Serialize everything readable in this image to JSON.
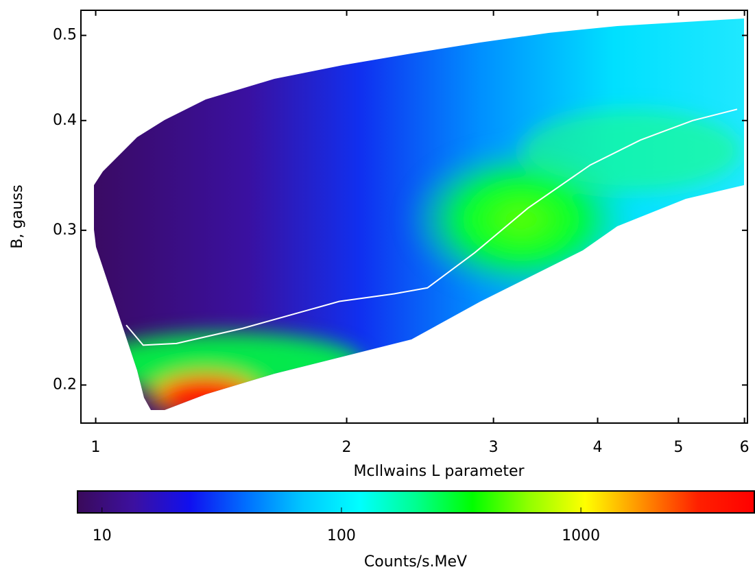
{
  "chart_data": {
    "type": "heatmap",
    "xlabel": "McIlwains L parameter",
    "ylabel": "B, gauss",
    "xscale": "log",
    "yscale": "log",
    "xlim": [
      0.96,
      6.05
    ],
    "xticks": [
      1,
      2,
      3,
      4,
      5,
      6
    ],
    "ylim": [
      0.181,
      0.534
    ],
    "yticks": [
      0.2,
      0.3,
      0.4,
      0.5
    ],
    "series": [
      {
        "type": "line",
        "color": "#ffffff",
        "x": [
          1.088,
          1.14,
          1.25,
          1.5,
          1.96,
          2.28,
          2.5,
          2.85,
          3.3,
          3.92,
          4.5,
          5.2,
          5.88
        ],
        "values": [
          0.234,
          0.222,
          0.223,
          0.232,
          0.249,
          0.254,
          0.258,
          0.283,
          0.318,
          0.356,
          0.38,
          0.4,
          0.412
        ]
      }
    ],
    "colorbar": {
      "label": "Counts/s.MeV",
      "scale": "log",
      "lim": [
        7.9,
        5300
      ],
      "ticks": [
        10,
        100,
        1000
      ],
      "colormap": [
        "#3a0a5a",
        "#3c10a0",
        "#1010f0",
        "#0070ff",
        "#00c8ff",
        "#00ffff",
        "#00ff90",
        "#00ff00",
        "#90ff00",
        "#ffff00",
        "#ff9000",
        "#ff2000",
        "#ff0000"
      ]
    }
  }
}
